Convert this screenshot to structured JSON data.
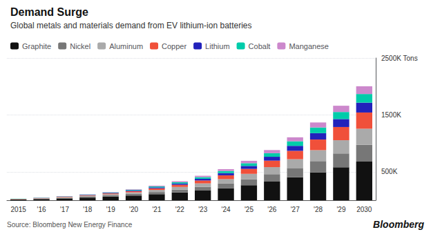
{
  "chart_data": {
    "type": "bar",
    "stacked": true,
    "title": "Demand Surge",
    "subtitle": "Global metals and materials demand from EV lithium-ion batteries",
    "annotations": [
      "Source: Bloomberg New Energy Finance",
      "Bloomberg"
    ],
    "categories": [
      "2015",
      "'16",
      "'17",
      "'18",
      "'19",
      "'20",
      "'21",
      "'22",
      "'23",
      "'24",
      "'25",
      "'26",
      "'27",
      "'28",
      "'29",
      "2030"
    ],
    "series": [
      {
        "name": "Graphite",
        "color": "#111111",
        "values": [
          12,
          20,
          32,
          46,
          62,
          82,
          106,
          136,
          170,
          212,
          264,
          328,
          404,
          488,
          578,
          680
        ]
      },
      {
        "name": "Nickel",
        "color": "#777777",
        "values": [
          4,
          7,
          11,
          16,
          22,
          29,
          38,
          50,
          64,
          81,
          102,
          130,
          162,
          200,
          244,
          295
        ]
      },
      {
        "name": "Aluminum",
        "color": "#aaaaaa",
        "values": [
          4,
          7,
          11,
          15,
          21,
          28,
          37,
          48,
          62,
          78,
          98,
          124,
          155,
          192,
          233,
          282
        ]
      },
      {
        "name": "Copper",
        "color": "#f0503a",
        "values": [
          3,
          5,
          8,
          11,
          15,
          21,
          28,
          38,
          51,
          67,
          87,
          114,
          147,
          187,
          232,
          285
        ]
      },
      {
        "name": "Lithium",
        "color": "#2222bb",
        "values": [
          2,
          3,
          4,
          6,
          9,
          12,
          17,
          22,
          30,
          39,
          52,
          68,
          88,
          112,
          140,
          173
        ]
      },
      {
        "name": "Cobalt",
        "color": "#00ccaa",
        "values": [
          2,
          3,
          4,
          6,
          9,
          12,
          16,
          22,
          29,
          37,
          48,
          63,
          80,
          100,
          124,
          152
        ]
      },
      {
        "name": "Manganese",
        "color": "#cc88cc",
        "values": [
          1,
          2,
          3,
          5,
          7,
          10,
          14,
          18,
          24,
          32,
          42,
          55,
          70,
          88,
          110,
          136
        ]
      }
    ],
    "ylim": [
      0,
      2500
    ],
    "yticks": [
      {
        "value": 500,
        "label": "500K"
      },
      {
        "value": 1500,
        "label": "1500K"
      },
      {
        "value": 2500,
        "label": "2500K Tons"
      }
    ],
    "grid": true,
    "legend": "upper left"
  }
}
